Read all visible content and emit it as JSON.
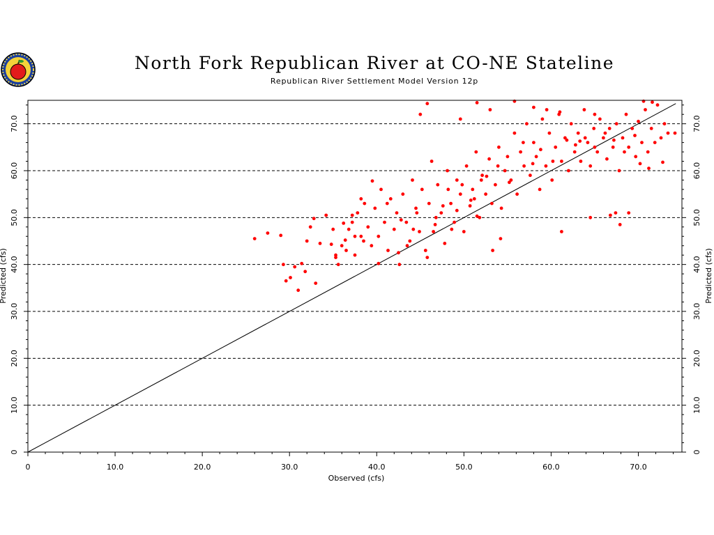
{
  "header": {
    "title": "North Fork Republican River at CO-NE Stateline",
    "subtitle": "Republican River Settlement Model Version 12p"
  },
  "colors": {
    "points": "#ff0000",
    "grid": "#000000",
    "line": "#000000"
  },
  "chart_data": {
    "type": "scatter",
    "title": "North Fork Republican River at CO-NE Stateline",
    "subtitle": "Republican River Settlement Model Version 12p",
    "xlabel": "Observed (cfs)",
    "ylabel": "Predicted (cfs)",
    "ylabel_right": "Predicted (cfs)",
    "xlim": [
      0,
      75
    ],
    "ylim": [
      0,
      75
    ],
    "x_tick_labels": [
      "0",
      "10.0",
      "20.0",
      "30.0",
      "40.0",
      "50.0",
      "60.0",
      "70.0"
    ],
    "y_tick_labels": [
      "0",
      "10.0",
      "20.0",
      "30.0",
      "40.0",
      "50.0",
      "60.0",
      "70.0"
    ],
    "grid": "horizontal dashed",
    "reference_line": "1:1",
    "series": [
      {
        "values": [
          [
            26,
            45.5
          ],
          [
            27.5,
            46.7
          ],
          [
            29,
            46.2
          ],
          [
            29.3,
            40
          ],
          [
            29.6,
            36.5
          ],
          [
            30.1,
            37.2
          ],
          [
            30.6,
            39.5
          ],
          [
            31,
            34.5
          ],
          [
            31.4,
            40.2
          ],
          [
            31.8,
            38.5
          ],
          [
            32,
            45
          ],
          [
            32.4,
            48
          ],
          [
            33,
            36
          ],
          [
            33.5,
            44.5
          ],
          [
            32.8,
            49.8
          ],
          [
            34.2,
            50.5
          ],
          [
            35,
            47.5
          ],
          [
            35.3,
            42
          ],
          [
            35.6,
            40
          ],
          [
            36,
            44
          ],
          [
            36.4,
            45.2
          ],
          [
            36.8,
            47.5
          ],
          [
            37.2,
            49
          ],
          [
            37.5,
            42
          ],
          [
            37.8,
            51
          ],
          [
            38.2,
            46
          ],
          [
            38.6,
            53
          ],
          [
            39,
            48
          ],
          [
            39.4,
            44
          ],
          [
            39.8,
            52
          ],
          [
            40.2,
            46
          ],
          [
            40.5,
            56
          ],
          [
            40.9,
            49
          ],
          [
            41.3,
            43
          ],
          [
            41.6,
            54
          ],
          [
            42,
            47.5
          ],
          [
            42.3,
            51
          ],
          [
            42.6,
            40
          ],
          [
            43,
            55
          ],
          [
            43.4,
            49
          ],
          [
            43.8,
            45
          ],
          [
            44.1,
            58
          ],
          [
            44.5,
            52
          ],
          [
            44.9,
            47
          ],
          [
            45.2,
            56
          ],
          [
            45.6,
            43
          ],
          [
            46,
            53
          ],
          [
            46.3,
            62
          ],
          [
            46.7,
            48.5
          ],
          [
            47,
            57
          ],
          [
            47.4,
            51
          ],
          [
            47.8,
            44.5
          ],
          [
            48.1,
            60
          ],
          [
            48.5,
            53
          ],
          [
            48.9,
            49
          ],
          [
            49.2,
            58
          ],
          [
            49.6,
            55
          ],
          [
            50,
            47
          ],
          [
            50.3,
            61
          ],
          [
            50.7,
            52.5
          ],
          [
            51,
            56
          ],
          [
            51.4,
            64
          ],
          [
            51.8,
            50
          ],
          [
            52.1,
            59
          ],
          [
            52.5,
            55
          ],
          [
            52.9,
            62.5
          ],
          [
            53.2,
            53
          ],
          [
            53.6,
            57
          ],
          [
            54,
            65
          ],
          [
            54.3,
            52
          ],
          [
            54.7,
            60
          ],
          [
            55,
            63
          ],
          [
            55.4,
            58
          ],
          [
            55.8,
            68
          ],
          [
            56.1,
            55
          ],
          [
            56.5,
            64
          ],
          [
            56.9,
            61
          ],
          [
            57.2,
            70
          ],
          [
            57.6,
            59
          ],
          [
            58,
            66
          ],
          [
            58.3,
            63
          ],
          [
            58.7,
            56
          ],
          [
            59,
            71
          ],
          [
            59.4,
            61
          ],
          [
            59.8,
            68
          ],
          [
            60.1,
            58
          ],
          [
            60.5,
            65
          ],
          [
            60.9,
            72
          ],
          [
            61.2,
            62
          ],
          [
            61.6,
            67
          ],
          [
            62,
            60
          ],
          [
            62.3,
            70
          ],
          [
            62.7,
            64
          ],
          [
            63.1,
            68
          ],
          [
            63.4,
            62
          ],
          [
            63.8,
            73
          ],
          [
            64.2,
            66
          ],
          [
            64.5,
            61
          ],
          [
            64.9,
            69
          ],
          [
            65.3,
            64
          ],
          [
            65.6,
            71
          ],
          [
            66,
            67
          ],
          [
            66.4,
            62.5
          ],
          [
            66.7,
            69
          ],
          [
            67.1,
            65
          ],
          [
            67.5,
            70
          ],
          [
            67.8,
            60
          ],
          [
            68.2,
            67
          ],
          [
            68.6,
            72
          ],
          [
            68.9,
            65
          ],
          [
            69.3,
            69
          ],
          [
            69.7,
            63
          ],
          [
            70,
            70.5
          ],
          [
            70.4,
            66
          ],
          [
            70.8,
            73
          ],
          [
            71.1,
            64
          ],
          [
            71.5,
            69
          ],
          [
            71.9,
            66
          ],
          [
            72.2,
            74
          ],
          [
            72.6,
            67
          ],
          [
            73,
            70
          ],
          [
            73.4,
            68
          ],
          [
            74.2,
            68
          ],
          [
            45,
            72
          ],
          [
            45.8,
            74.3
          ],
          [
            51.5,
            74.5
          ],
          [
            55.8,
            74.8
          ],
          [
            58,
            73.5
          ],
          [
            61,
            72.5
          ],
          [
            65,
            72
          ],
          [
            70.6,
            74.8
          ],
          [
            71.6,
            74.6
          ],
          [
            49.6,
            71
          ],
          [
            53,
            73
          ],
          [
            59.5,
            73
          ],
          [
            63.3,
            66.3
          ],
          [
            64.5,
            50
          ],
          [
            66.8,
            50.5
          ],
          [
            67.4,
            51
          ],
          [
            67.9,
            48.5
          ],
          [
            68.9,
            51
          ],
          [
            61.2,
            47
          ],
          [
            53.3,
            43
          ],
          [
            54.2,
            45.5
          ],
          [
            51.5,
            50.3
          ],
          [
            52,
            58
          ],
          [
            49.2,
            51.5
          ],
          [
            50.8,
            53.7
          ],
          [
            48.6,
            47.5
          ],
          [
            47.6,
            52.5
          ],
          [
            46.5,
            47
          ],
          [
            45.8,
            41.5
          ],
          [
            43.5,
            44
          ],
          [
            42.5,
            42.5
          ],
          [
            40.2,
            40.2
          ],
          [
            38.5,
            45
          ],
          [
            37.5,
            46
          ],
          [
            36.2,
            48.8
          ],
          [
            35.3,
            41.5
          ],
          [
            34.8,
            44.3
          ],
          [
            42.8,
            49.5
          ],
          [
            44.6,
            51
          ],
          [
            46.8,
            50
          ],
          [
            48.2,
            56
          ],
          [
            49.8,
            57
          ],
          [
            51.2,
            54
          ],
          [
            52.6,
            58.8
          ],
          [
            53.9,
            61
          ],
          [
            55.2,
            57.5
          ],
          [
            56.8,
            66
          ],
          [
            57.9,
            61.5
          ],
          [
            58.8,
            64.5
          ],
          [
            60.2,
            62
          ],
          [
            61.8,
            66.5
          ],
          [
            62.8,
            65.5
          ],
          [
            63.9,
            67
          ],
          [
            65,
            65
          ],
          [
            66.2,
            68
          ],
          [
            67.2,
            66.5
          ],
          [
            68.4,
            64
          ],
          [
            69.6,
            67.5
          ],
          [
            70.2,
            61.5
          ],
          [
            71.2,
            60.5
          ],
          [
            72.8,
            61.8
          ],
          [
            44.2,
            47.5
          ],
          [
            41.2,
            53
          ],
          [
            39.5,
            57.8
          ],
          [
            38.2,
            54
          ],
          [
            37.2,
            50.5
          ],
          [
            36.5,
            43
          ]
        ]
      }
    ]
  }
}
